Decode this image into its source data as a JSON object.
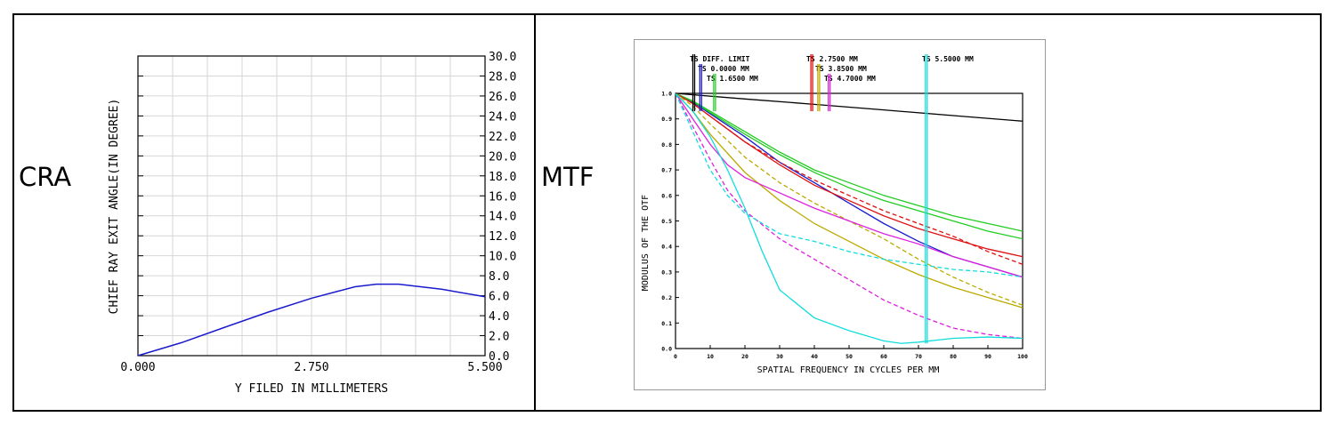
{
  "panels": {
    "left_label": "CRA",
    "right_label": "MTF"
  },
  "chart_data": [
    {
      "type": "line",
      "xlabel": "Y FILED IN MILLIMETERS",
      "ylabel": "CHIEF RAY EXIT ANGLE(IN DEGREE)",
      "xlim": [
        0,
        5.5
      ],
      "ylim": [
        0,
        30
      ],
      "x_ticks": [
        0,
        2.75,
        5.5
      ],
      "x_tick_labels": [
        "0.000",
        "2.750",
        "5.500"
      ],
      "y_ticks": [
        0,
        2,
        4,
        6,
        8,
        10,
        12,
        14,
        16,
        18,
        20,
        22,
        24,
        26,
        28,
        30
      ],
      "y_tick_labels": [
        "0.0",
        "2.0",
        "4.0",
        "6.0",
        "8.0",
        "10.0",
        "12.0",
        "14.0",
        "16.0",
        "18.0",
        "20.0",
        "22.0",
        "24.0",
        "26.0",
        "28.0",
        "30.0"
      ],
      "y_axis_side": "right",
      "grid": true,
      "series": [
        {
          "color": "#1a1acc",
          "x": [
            0,
            0.69,
            1.38,
            2.06,
            2.75,
            3.44,
            3.78,
            4.13,
            4.81,
            5.5
          ],
          "y": [
            0,
            1.3,
            2.85,
            4.35,
            5.75,
            6.9,
            7.15,
            7.15,
            6.65,
            5.9
          ]
        }
      ]
    },
    {
      "type": "line",
      "xlabel": "SPATIAL FREQUENCY IN CYCLES PER MM",
      "ylabel": "MODULUS OF THE OTF",
      "xlim": [
        0,
        100
      ],
      "ylim": [
        0,
        1
      ],
      "x_ticks": [
        0,
        10,
        20,
        30,
        40,
        50,
        60,
        70,
        80,
        90,
        100
      ],
      "x_tick_labels": [
        "0",
        "10",
        "20",
        "30",
        "40",
        "50",
        "60",
        "70",
        "80",
        "90",
        "100"
      ],
      "y_ticks": [
        0,
        0.1,
        0.2,
        0.3,
        0.4,
        0.5,
        0.6,
        0.7,
        0.8,
        0.9,
        1.0
      ],
      "y_tick_labels": [
        "0.0",
        "0.1",
        "0.2",
        "0.3",
        "0.4",
        "0.5",
        "0.6",
        "0.7",
        "0.8",
        "0.9",
        "1.0"
      ],
      "grid": false,
      "legend": [
        {
          "text": "TS DIFF. LIMIT",
          "color": "#000000",
          "x": 5
        },
        {
          "text": "TS 0.0000 MM",
          "color": "#1a1acc",
          "x": 7
        },
        {
          "text": "TS 1.6500 MM",
          "color": "#22cc22",
          "x": 11
        },
        {
          "text": "TS 2.7500 MM",
          "color": "#dd1111",
          "x": 39
        },
        {
          "text": "TS 3.8500 MM",
          "color": "#bbaa00",
          "x": 41
        },
        {
          "text": "TS 4.7000 MM",
          "color": "#dd22dd",
          "x": 44
        },
        {
          "text": "TS 5.5000 MM",
          "color": "#11dddd",
          "x": 72
        }
      ],
      "series": [
        {
          "color": "#000000",
          "dash": false,
          "x": [
            0,
            20,
            40,
            60,
            80,
            100
          ],
          "y": [
            1.0,
            0.978,
            0.957,
            0.935,
            0.913,
            0.891
          ]
        },
        {
          "color": "#1a1acc",
          "dash": false,
          "x": [
            0,
            5,
            10,
            20,
            30,
            40,
            50,
            60,
            70,
            80,
            90,
            100
          ],
          "y": [
            1.0,
            0.965,
            0.92,
            0.83,
            0.73,
            0.65,
            0.57,
            0.49,
            0.42,
            0.36,
            0.32,
            0.28
          ]
        },
        {
          "color": "#22cc22",
          "dash": false,
          "x": [
            0,
            5,
            10,
            20,
            30,
            40,
            50,
            60,
            70,
            80,
            90,
            100
          ],
          "y": [
            1.0,
            0.97,
            0.93,
            0.85,
            0.77,
            0.7,
            0.65,
            0.6,
            0.56,
            0.52,
            0.49,
            0.46
          ]
        },
        {
          "color": "#22cc22",
          "dash": false,
          "x": [
            0,
            5,
            10,
            20,
            30,
            40,
            50,
            60,
            70,
            80,
            90,
            100
          ],
          "y": [
            1.0,
            0.968,
            0.925,
            0.84,
            0.76,
            0.69,
            0.63,
            0.58,
            0.54,
            0.5,
            0.46,
            0.43
          ]
        },
        {
          "color": "#dd1111",
          "dash": false,
          "x": [
            0,
            5,
            10,
            20,
            30,
            40,
            50,
            60,
            70,
            80,
            90,
            100
          ],
          "y": [
            1.0,
            0.96,
            0.91,
            0.81,
            0.72,
            0.64,
            0.58,
            0.52,
            0.47,
            0.43,
            0.39,
            0.36
          ]
        },
        {
          "color": "#dd1111",
          "dash": true,
          "x": [
            0,
            5,
            10,
            20,
            30,
            40,
            50,
            60,
            70,
            80,
            90,
            100
          ],
          "y": [
            1.0,
            0.96,
            0.91,
            0.81,
            0.73,
            0.66,
            0.6,
            0.54,
            0.49,
            0.44,
            0.38,
            0.33
          ]
        },
        {
          "color": "#bbaa00",
          "dash": false,
          "x": [
            0,
            5,
            10,
            20,
            30,
            40,
            50,
            60,
            70,
            80,
            90,
            100
          ],
          "y": [
            1.0,
            0.93,
            0.84,
            0.69,
            0.58,
            0.49,
            0.42,
            0.35,
            0.29,
            0.24,
            0.2,
            0.16
          ]
        },
        {
          "color": "#bbaa00",
          "dash": true,
          "x": [
            0,
            5,
            10,
            20,
            30,
            40,
            50,
            60,
            70,
            80,
            90,
            100
          ],
          "y": [
            1.0,
            0.95,
            0.88,
            0.75,
            0.65,
            0.57,
            0.5,
            0.43,
            0.35,
            0.28,
            0.22,
            0.17
          ]
        },
        {
          "color": "#dd22dd",
          "dash": false,
          "x": [
            0,
            5,
            10,
            15,
            20,
            30,
            40,
            50,
            60,
            70,
            80,
            90,
            100
          ],
          "y": [
            1.0,
            0.9,
            0.8,
            0.72,
            0.67,
            0.61,
            0.55,
            0.5,
            0.45,
            0.41,
            0.36,
            0.32,
            0.28
          ]
        },
        {
          "color": "#dd22dd",
          "dash": true,
          "x": [
            0,
            5,
            10,
            15,
            20,
            30,
            40,
            50,
            60,
            70,
            80,
            90,
            100
          ],
          "y": [
            1.0,
            0.87,
            0.74,
            0.62,
            0.54,
            0.43,
            0.35,
            0.27,
            0.19,
            0.13,
            0.08,
            0.055,
            0.04
          ]
        },
        {
          "color": "#11dddd",
          "dash": false,
          "x": [
            0,
            5,
            10,
            15,
            20,
            25,
            30,
            40,
            50,
            60,
            65,
            70,
            80,
            90,
            100
          ],
          "y": [
            1.0,
            0.93,
            0.83,
            0.7,
            0.55,
            0.38,
            0.23,
            0.12,
            0.07,
            0.03,
            0.02,
            0.025,
            0.04,
            0.045,
            0.04
          ]
        },
        {
          "color": "#11dddd",
          "dash": true,
          "x": [
            0,
            5,
            10,
            15,
            20,
            30,
            40,
            50,
            60,
            70,
            80,
            90,
            100
          ],
          "y": [
            1.0,
            0.85,
            0.7,
            0.6,
            0.53,
            0.45,
            0.42,
            0.38,
            0.35,
            0.33,
            0.31,
            0.3,
            0.28
          ]
        }
      ]
    }
  ]
}
